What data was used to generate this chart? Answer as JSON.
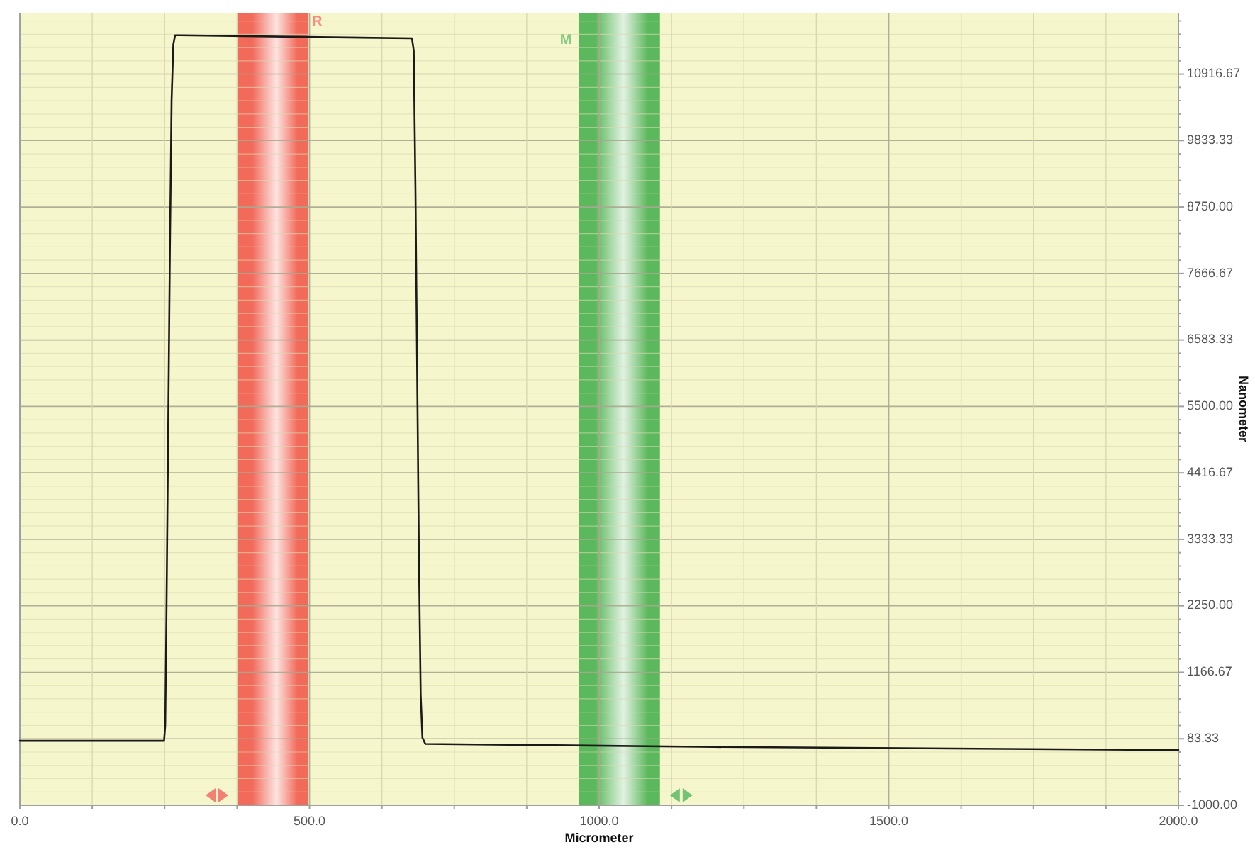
{
  "chart_data": {
    "type": "line",
    "xlabel": "Micrometer",
    "ylabel": "Nanometer",
    "xlim": [
      0,
      2000
    ],
    "ylim": [
      -1000,
      11916.67
    ],
    "xticks": [
      {
        "value": 0,
        "label": "0.0"
      },
      {
        "value": 125,
        "label": null
      },
      {
        "value": 250,
        "label": null
      },
      {
        "value": 375,
        "label": null
      },
      {
        "value": 500,
        "label": "500.0"
      },
      {
        "value": 625,
        "label": null
      },
      {
        "value": 750,
        "label": null
      },
      {
        "value": 875,
        "label": null
      },
      {
        "value": 1000,
        "label": "1000.0"
      },
      {
        "value": 1125,
        "label": null
      },
      {
        "value": 1250,
        "label": null
      },
      {
        "value": 1375,
        "label": null
      },
      {
        "value": 1500,
        "label": "1500.0"
      },
      {
        "value": 1625,
        "label": null
      },
      {
        "value": 1750,
        "label": null
      },
      {
        "value": 1875,
        "label": null
      },
      {
        "value": 2000,
        "label": "2000.0"
      }
    ],
    "yticks": [
      {
        "value": -1000,
        "label": "-1000.00"
      },
      {
        "value": -783.33,
        "label": null
      },
      {
        "value": -566.67,
        "label": null
      },
      {
        "value": -350,
        "label": null
      },
      {
        "value": -133.33,
        "label": null
      },
      83.33,
      {
        "value": 300,
        "label": null
      },
      {
        "value": 516.67,
        "label": null
      },
      {
        "value": 733.33,
        "label": null
      },
      {
        "value": 950,
        "label": null
      },
      1166.67,
      {
        "value": 1383.33,
        "label": null
      },
      {
        "value": 1600,
        "label": null
      },
      {
        "value": 1816.67,
        "label": null
      },
      {
        "value": 2033.33,
        "label": null
      },
      {
        "value": 2250,
        "label": "2250.00"
      },
      {
        "value": 2466.67,
        "label": null
      },
      {
        "value": 2683.33,
        "label": null
      },
      {
        "value": 2900,
        "label": null
      },
      {
        "value": 3116.67,
        "label": null
      },
      3333.33,
      {
        "value": 3550,
        "label": null
      },
      {
        "value": 3766.67,
        "label": null
      },
      {
        "value": 3983.33,
        "label": null
      },
      {
        "value": 4200,
        "label": null
      },
      4416.67,
      {
        "value": 4633.33,
        "label": null
      },
      {
        "value": 4850,
        "label": null
      },
      {
        "value": 5066.67,
        "label": null
      },
      {
        "value": 5283.33,
        "label": null
      },
      {
        "value": 5500,
        "label": "5500.00"
      },
      {
        "value": 5716.67,
        "label": null
      },
      {
        "value": 5933.33,
        "label": null
      },
      {
        "value": 6150,
        "label": null
      },
      {
        "value": 6366.67,
        "label": null
      },
      6583.33,
      {
        "value": 6800,
        "label": null
      },
      {
        "value": 7016.67,
        "label": null
      },
      {
        "value": 7233.33,
        "label": null
      },
      {
        "value": 7450,
        "label": null
      },
      7666.67,
      {
        "value": 7883.33,
        "label": null
      },
      {
        "value": 8100,
        "label": null
      },
      {
        "value": 8316.67,
        "label": null
      },
      {
        "value": 8533.33,
        "label": null
      },
      {
        "value": 8750,
        "label": "8750.00"
      },
      {
        "value": 8966.67,
        "label": null
      },
      {
        "value": 9183.33,
        "label": null
      },
      {
        "value": 9400,
        "label": null
      },
      {
        "value": 9616.67,
        "label": null
      },
      9833.33,
      {
        "value": 10050,
        "label": null
      },
      {
        "value": 10266.67,
        "label": null
      },
      {
        "value": 10483.33,
        "label": null
      },
      {
        "value": 10700,
        "label": null
      },
      10916.67,
      {
        "value": 11133.33,
        "label": null
      },
      {
        "value": 11350,
        "label": null
      },
      {
        "value": 11566.67,
        "label": null
      },
      {
        "value": 11783.33,
        "label": null
      }
    ],
    "grid": true,
    "x": [
      0,
      249,
      251,
      253,
      256,
      259,
      262,
      265,
      268,
      272,
      677,
      680,
      683,
      686,
      689,
      692,
      695,
      700,
      1200,
      2000
    ],
    "series": [
      {
        "color": "#1a1a1a",
        "values": [
          50,
          50,
          300,
          2000,
          5000,
          8000,
          10500,
          11400,
          11550,
          11550,
          11500,
          11300,
          9000,
          6000,
          3000,
          800,
          100,
          0,
          -50,
          -100
        ]
      }
    ],
    "bands": [
      {
        "axis": "x",
        "from": 377,
        "to": 497,
        "label": "R",
        "color": "#f26a5a"
      },
      {
        "axis": "x",
        "from": 965,
        "to": 1105,
        "label": "M",
        "color": "#5cb85c"
      }
    ]
  }
}
